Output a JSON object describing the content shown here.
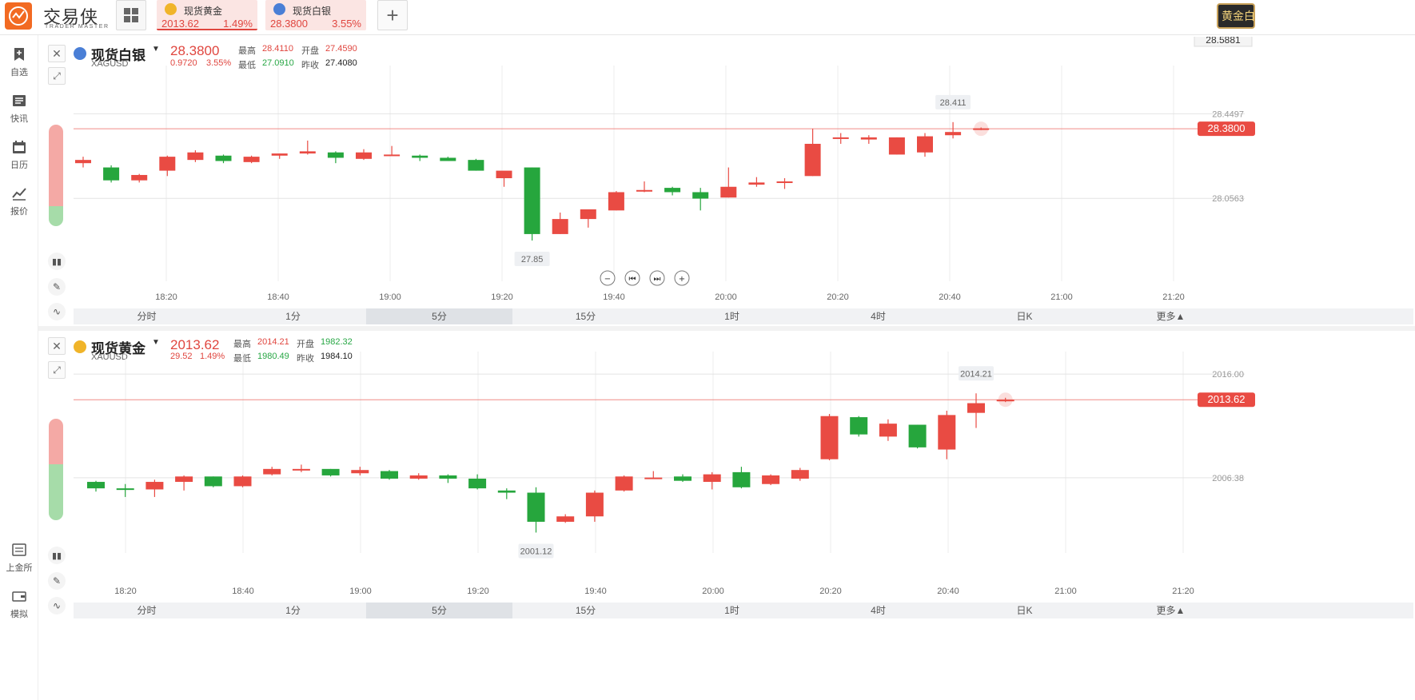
{
  "app": {
    "logo_text": "交易侠",
    "logo_sub": "TRADER MASTER",
    "corner_label": "黄金白银"
  },
  "tabs": [
    {
      "name": "现货黄金",
      "price": "2013.62",
      "pct": "1.49%",
      "icon": "gold-coin-icon",
      "color": "#f0b429"
    },
    {
      "name": "现货白银",
      "price": "28.3800",
      "pct": "3.55%",
      "icon": "silver-coin-icon",
      "color": "#4a7fd6"
    }
  ],
  "sidebar": {
    "top": [
      {
        "label": "自选",
        "icon": "bookmark-plus-icon"
      },
      {
        "label": "快讯",
        "icon": "news-list-icon"
      },
      {
        "label": "日历",
        "icon": "calendar-icon"
      },
      {
        "label": "报价",
        "icon": "quote-chart-icon"
      }
    ],
    "bottom": [
      {
        "label": "上金所",
        "icon": "sge-icon"
      },
      {
        "label": "模拟",
        "icon": "wallet-icon"
      }
    ]
  },
  "timeframes": [
    "分时",
    "1分",
    "5分",
    "15分",
    "1时",
    "4时",
    "日K",
    "更多▲"
  ],
  "active_timeframe": "5分",
  "panels": [
    {
      "id": "silver",
      "title": "现货白银",
      "symbol": "XAGUSD",
      "price": "28.3800",
      "change": "0.9720",
      "change_pct": "3.55%",
      "labels": {
        "high": "最高",
        "open": "开盘",
        "low": "最低",
        "prev_close": "昨收"
      },
      "high": "28.4110",
      "open": "27.4590",
      "low": "27.0910",
      "prev_close": "27.4080",
      "price_tag": "28.3800",
      "top_right_value": "28.5881",
      "chart_data": {
        "type": "candlestick",
        "x_ticks": [
          "18:20",
          "18:40",
          "19:00",
          "19:20",
          "19:40",
          "20:00",
          "20:20",
          "20:40",
          "21:00",
          "21:20"
        ],
        "y_ticks": [
          "28.4497",
          "28.0563"
        ],
        "ylim": [
          27.7,
          28.6
        ],
        "last_price": 28.38,
        "high_label": "28.411",
        "low_label": "27.85",
        "candles": [
          {
            "o": 28.22,
            "h": 28.25,
            "l": 28.2,
            "c": 28.235
          },
          {
            "o": 28.2,
            "h": 28.21,
            "l": 28.13,
            "c": 28.14
          },
          {
            "o": 28.14,
            "h": 28.17,
            "l": 28.13,
            "c": 28.165
          },
          {
            "o": 28.185,
            "h": 28.255,
            "l": 28.16,
            "c": 28.25
          },
          {
            "o": 28.235,
            "h": 28.28,
            "l": 28.225,
            "c": 28.27
          },
          {
            "o": 28.255,
            "h": 28.26,
            "l": 28.22,
            "c": 28.23
          },
          {
            "o": 28.225,
            "h": 28.255,
            "l": 28.22,
            "c": 28.25
          },
          {
            "o": 28.255,
            "h": 28.265,
            "l": 28.24,
            "c": 28.265
          },
          {
            "o": 28.265,
            "h": 28.325,
            "l": 28.26,
            "c": 28.275
          },
          {
            "o": 28.27,
            "h": 28.275,
            "l": 28.22,
            "c": 28.245
          },
          {
            "o": 28.24,
            "h": 28.285,
            "l": 28.235,
            "c": 28.27
          },
          {
            "o": 28.26,
            "h": 28.3,
            "l": 28.255,
            "c": 28.26
          },
          {
            "o": 28.255,
            "h": 28.26,
            "l": 28.23,
            "c": 28.245
          },
          {
            "o": 28.245,
            "h": 28.25,
            "l": 28.23,
            "c": 28.23
          },
          {
            "o": 28.235,
            "h": 28.24,
            "l": 28.185,
            "c": 28.185
          },
          {
            "o": 28.15,
            "h": 28.18,
            "l": 28.11,
            "c": 28.185
          },
          {
            "o": 28.2,
            "h": 28.2,
            "l": 27.86,
            "c": 27.89
          },
          {
            "o": 27.89,
            "h": 27.99,
            "l": 27.89,
            "c": 27.96
          },
          {
            "o": 27.96,
            "h": 28.005,
            "l": 27.92,
            "c": 28.005
          },
          {
            "o": 28.0,
            "h": 28.09,
            "l": 28.0,
            "c": 28.085
          },
          {
            "o": 28.09,
            "h": 28.135,
            "l": 28.085,
            "c": 28.095
          },
          {
            "o": 28.105,
            "h": 28.11,
            "l": 28.07,
            "c": 28.085
          },
          {
            "o": 28.085,
            "h": 28.105,
            "l": 28.0,
            "c": 28.055
          },
          {
            "o": 28.06,
            "h": 28.2,
            "l": 28.06,
            "c": 28.11
          },
          {
            "o": 28.12,
            "h": 28.155,
            "l": 28.11,
            "c": 28.13
          },
          {
            "o": 28.13,
            "h": 28.15,
            "l": 28.1,
            "c": 28.135
          },
          {
            "o": 28.16,
            "h": 28.38,
            "l": 28.16,
            "c": 28.31
          },
          {
            "o": 28.34,
            "h": 28.36,
            "l": 28.31,
            "c": 28.34
          },
          {
            "o": 28.33,
            "h": 28.35,
            "l": 28.31,
            "c": 28.34
          },
          {
            "o": 28.26,
            "h": 28.34,
            "l": 28.26,
            "c": 28.34
          },
          {
            "o": 28.27,
            "h": 28.36,
            "l": 28.25,
            "c": 28.345
          },
          {
            "o": 28.35,
            "h": 28.411,
            "l": 28.335,
            "c": 28.365
          },
          {
            "o": 28.378,
            "h": 28.386,
            "l": 28.374,
            "c": 28.382
          }
        ]
      }
    },
    {
      "id": "gold",
      "title": "现货黄金",
      "symbol": "XAUUSD",
      "price": "2013.62",
      "change": "29.52",
      "change_pct": "1.49%",
      "labels": {
        "high": "最高",
        "open": "开盘",
        "low": "最低",
        "prev_close": "昨收"
      },
      "high": "2014.21",
      "open": "1982.32",
      "low": "1980.49",
      "prev_close": "1984.10",
      "price_tag": "2013.62",
      "chart_data": {
        "type": "candlestick",
        "x_ticks": [
          "18:20",
          "18:40",
          "19:00",
          "19:20",
          "19:40",
          "20:00",
          "20:20",
          "20:40",
          "21:00",
          "21:20"
        ],
        "y_ticks": [
          "2016.00",
          "2006.38"
        ],
        "ylim": [
          2000.0,
          2016.6
        ],
        "last_price": 2013.62,
        "high_label": "2014.21",
        "low_label": "2001.12",
        "candles": [
          {
            "o": 2006.0,
            "h": 2006.1,
            "l": 2005.1,
            "c": 2005.4
          },
          {
            "o": 2005.4,
            "h": 2005.8,
            "l": 2004.6,
            "c": 2005.3
          },
          {
            "o": 2005.3,
            "h": 2006.2,
            "l": 2004.6,
            "c": 2006.0
          },
          {
            "o": 2006.0,
            "h": 2006.6,
            "l": 2005.2,
            "c": 2006.5
          },
          {
            "o": 2006.5,
            "h": 2006.5,
            "l": 2005.5,
            "c": 2005.6
          },
          {
            "o": 2005.6,
            "h": 2006.6,
            "l": 2005.5,
            "c": 2006.5
          },
          {
            "o": 2006.7,
            "h": 2007.4,
            "l": 2006.6,
            "c": 2007.2
          },
          {
            "o": 2007.2,
            "h": 2007.6,
            "l": 2006.9,
            "c": 2007.2
          },
          {
            "o": 2007.2,
            "h": 2007.2,
            "l": 2006.5,
            "c": 2006.6
          },
          {
            "o": 2006.8,
            "h": 2007.4,
            "l": 2006.6,
            "c": 2007.1
          },
          {
            "o": 2007.0,
            "h": 2007.1,
            "l": 2006.2,
            "c": 2006.3
          },
          {
            "o": 2006.3,
            "h": 2006.8,
            "l": 2006.2,
            "c": 2006.6
          },
          {
            "o": 2006.6,
            "h": 2006.7,
            "l": 2005.9,
            "c": 2006.3
          },
          {
            "o": 2006.3,
            "h": 2006.7,
            "l": 2005.3,
            "c": 2005.4
          },
          {
            "o": 2005.2,
            "h": 2005.4,
            "l": 2004.4,
            "c": 2005.0
          },
          {
            "o": 2005.0,
            "h": 2005.5,
            "l": 2001.3,
            "c": 2002.3
          },
          {
            "o": 2002.3,
            "h": 2003.0,
            "l": 2002.2,
            "c": 2002.8
          },
          {
            "o": 2002.8,
            "h": 2005.2,
            "l": 2002.3,
            "c": 2005.0
          },
          {
            "o": 2005.2,
            "h": 2006.6,
            "l": 2005.1,
            "c": 2006.5
          },
          {
            "o": 2006.3,
            "h": 2007.0,
            "l": 2006.3,
            "c": 2006.4
          },
          {
            "o": 2006.5,
            "h": 2006.7,
            "l": 2006.0,
            "c": 2006.1
          },
          {
            "o": 2006.0,
            "h": 2006.9,
            "l": 2005.3,
            "c": 2006.7
          },
          {
            "o": 2006.9,
            "h": 2007.4,
            "l": 2005.4,
            "c": 2005.5
          },
          {
            "o": 2005.8,
            "h": 2006.7,
            "l": 2005.7,
            "c": 2006.6
          },
          {
            "o": 2006.3,
            "h": 2007.3,
            "l": 2006.1,
            "c": 2007.1
          },
          {
            "o": 2008.1,
            "h": 2012.3,
            "l": 2008.0,
            "c": 2012.1
          },
          {
            "o": 2012.0,
            "h": 2012.1,
            "l": 2010.2,
            "c": 2010.4
          },
          {
            "o": 2010.2,
            "h": 2011.8,
            "l": 2009.8,
            "c": 2011.4
          },
          {
            "o": 2011.3,
            "h": 2011.3,
            "l": 2009.1,
            "c": 2009.2
          },
          {
            "o": 2009.0,
            "h": 2012.6,
            "l": 2008.1,
            "c": 2012.2
          },
          {
            "o": 2012.4,
            "h": 2014.21,
            "l": 2011.0,
            "c": 2013.3
          },
          {
            "o": 2013.55,
            "h": 2013.8,
            "l": 2013.4,
            "c": 2013.62
          }
        ]
      }
    }
  ],
  "colors": {
    "up": "#e94b43",
    "down": "#26a63d",
    "accent": "#f26a22"
  }
}
